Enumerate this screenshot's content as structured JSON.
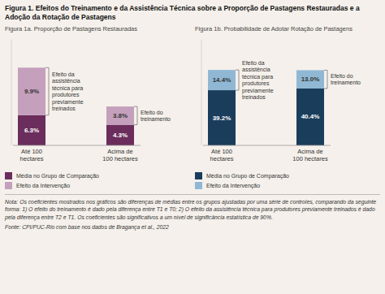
{
  "title": "Figura 1. Efeitos do Treinamento e da Assistência Técnica sobre a Proporção de Pastagens Restauradas e a Adoção da Rotação de Pastagens",
  "annotations": [
    "Nota: Os coeficientes mostrados nos gráficos são diferenças de médias entre os grupos ajustadas por uma série de controles, comparando da seguinte forma: 1) O efeito do treinamento é dado pela diferença entre T1 e T0; 2) O efeito da assistência técnica para produtores previamente treinados é dado pela diferença entre T2 e T1. Os coeficientes são significativos a um nível de significância estatística de 90%.",
    "Fonte: CPI/PUC-Rio com base nos dados de Bragança et al., 2022"
  ],
  "chart_data": [
    {
      "type": "bar",
      "title": "Figura 1a. Proporção de Pastagens Restauradas",
      "categories": [
        "Até 100\nhectares",
        "Acima de\n100 hectares"
      ],
      "series": [
        {
          "name": "Média no Grupo de Comparação",
          "color": "#6b2d5c",
          "values": [
            6.3,
            4.3
          ],
          "value_labels": [
            "6.3%",
            "4.3%"
          ]
        },
        {
          "name": "Efeito da Intervenção",
          "color": "#c4a0bc",
          "values": [
            9.9,
            3.8
          ],
          "value_labels": [
            "9.9%",
            "3.8%"
          ]
        }
      ],
      "stacked": true,
      "data_labels": true,
      "ylim": [
        0,
        22
      ],
      "tick_labels": "x",
      "grid": false,
      "legend": "bottom",
      "annotations": [
        "Efeito da\nassistência\ntécnica para\nprodutores\npreviamente\ntreinados",
        "Efeito do\ntreinamento"
      ]
    },
    {
      "type": "bar",
      "title": "Figura 1b. Probabilidade de Adotar Rotação de Pastagens",
      "categories": [
        "Até 100\nhectares",
        "Acima de\n100 hectares"
      ],
      "series": [
        {
          "name": "Média no Grupo de Comparação",
          "color": "#1a3d5c",
          "values": [
            39.2,
            40.4
          ],
          "value_labels": [
            "39.2%",
            "40.4%"
          ]
        },
        {
          "name": "Efeito da Intervenção",
          "color": "#90b8d4",
          "values": [
            14.4,
            13.0
          ],
          "value_labels": [
            "14.4%",
            "13.0%"
          ]
        }
      ],
      "stacked": true,
      "data_labels": true,
      "ylim": [
        0,
        75
      ],
      "tick_labels": "x",
      "grid": false,
      "legend": "bottom",
      "annotations": [
        "Efeito da\nassistência\ntécnica para\nprodutores\npreviamente\ntreinados",
        "Efeito do\ntreinamento"
      ]
    }
  ]
}
